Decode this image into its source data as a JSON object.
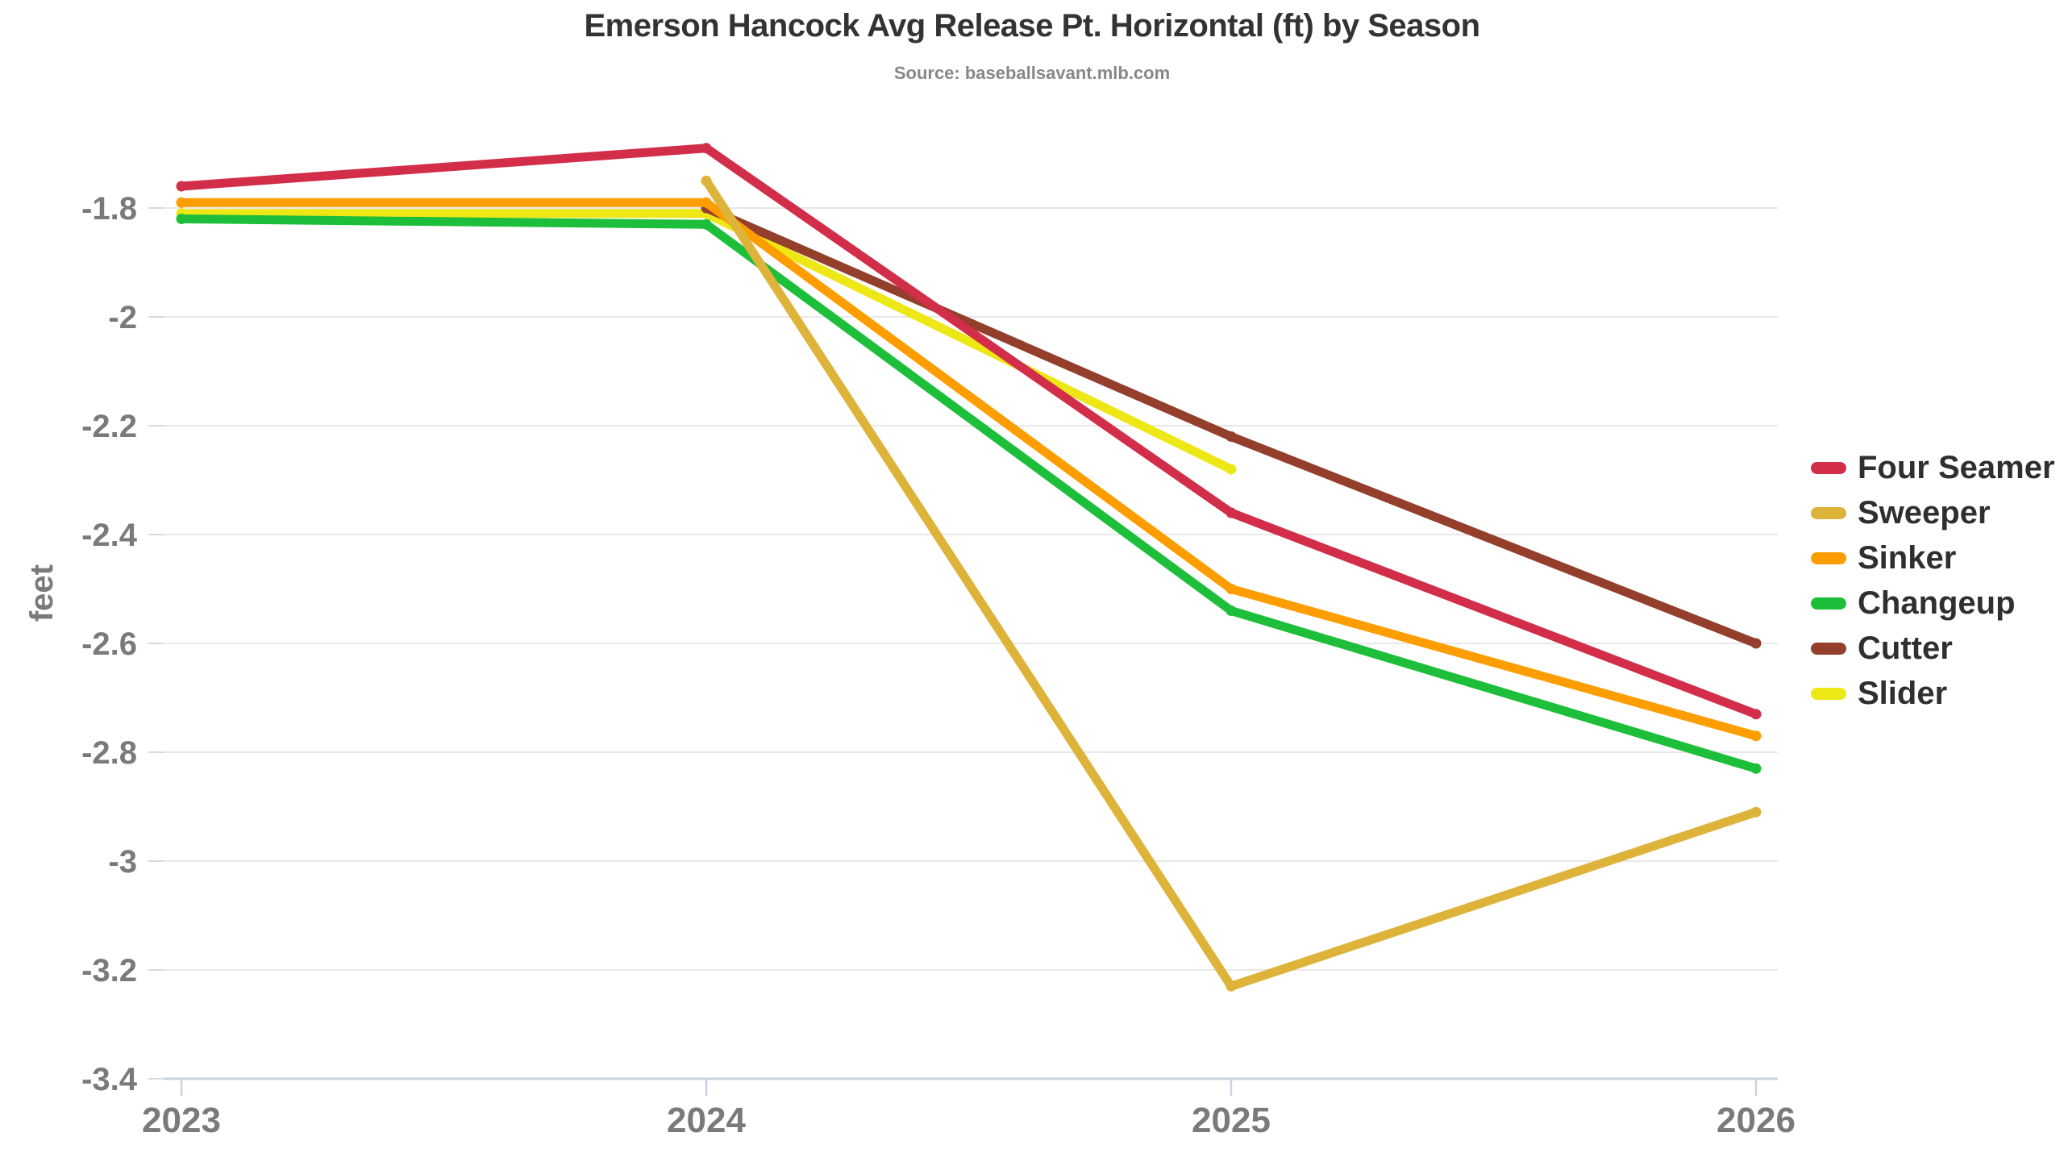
{
  "chart_data": {
    "type": "line",
    "title": "Emerson Hancock Avg Release Pt. Horizontal (ft) by Season",
    "source": "Source: baseballsavant.mlb.com",
    "xlabel": "",
    "ylabel": "feet",
    "categories": [
      "2023",
      "2024",
      "2025",
      "2026"
    ],
    "ylim": [
      -3.4,
      -1.64
    ],
    "grid": "horizontal",
    "legend_position": "right",
    "yticks": [
      {
        "value": -1.8,
        "label": "-1.8"
      },
      {
        "value": -2.0,
        "label": "-2"
      },
      {
        "value": -2.2,
        "label": "-2.2"
      },
      {
        "value": -2.4,
        "label": "-2.4"
      },
      {
        "value": -2.6,
        "label": "-2.6"
      },
      {
        "value": -2.8,
        "label": "-2.8"
      },
      {
        "value": -3.0,
        "label": "-3"
      },
      {
        "value": -3.2,
        "label": "-3.2"
      },
      {
        "value": -3.4,
        "label": "-3.4"
      }
    ],
    "series": [
      {
        "name": "Four Seamer",
        "color": "#D22D49",
        "values": [
          -1.76,
          -1.69,
          -2.36,
          -2.73
        ]
      },
      {
        "name": "Sweeper",
        "color": "#DDB33A",
        "values": [
          null,
          -1.75,
          -3.23,
          -2.91
        ]
      },
      {
        "name": "Sinker",
        "color": "#FE9D00",
        "values": [
          -1.79,
          -1.79,
          -2.5,
          -2.77
        ]
      },
      {
        "name": "Changeup",
        "color": "#1DBE3A",
        "values": [
          -1.82,
          -1.83,
          -2.54,
          -2.83
        ]
      },
      {
        "name": "Cutter",
        "color": "#933F2C",
        "values": [
          null,
          -1.8,
          -2.22,
          -2.6
        ]
      },
      {
        "name": "Slider",
        "color": "#EEE716",
        "values": [
          -1.81,
          -1.81,
          -2.28,
          null
        ]
      }
    ]
  },
  "colors": {
    "title": "#333333",
    "source": "#878787",
    "tick_label": "#7a7a7a",
    "grid": "#e8e8e8",
    "axis": "#c9d3e0",
    "y_tick_mark": "#d9d9d9",
    "legend_text": "#2f2f2f",
    "background": "#ffffff"
  }
}
